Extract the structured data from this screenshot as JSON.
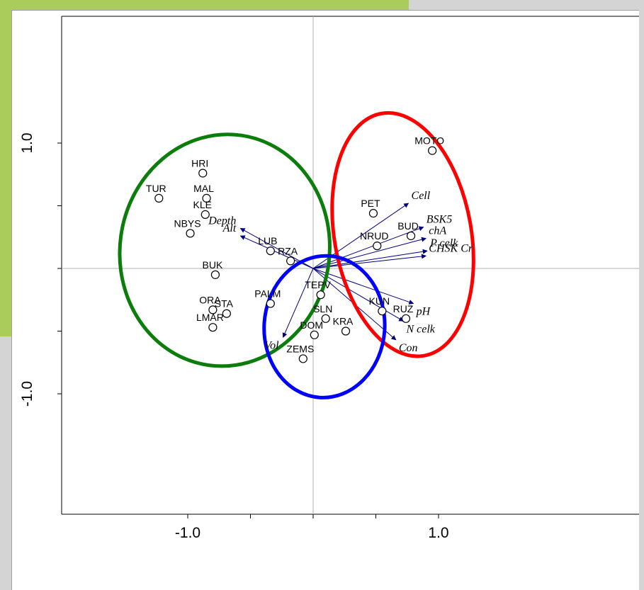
{
  "chart_data": {
    "type": "scatter",
    "title": "",
    "xlabel": "",
    "ylabel": "",
    "xlim": [
      -1.0,
      1.0
    ],
    "ylim": [
      -1.0,
      1.0
    ],
    "x_tick_labels": [
      {
        "value": -1.0,
        "label": "-1.0"
      },
      {
        "value": 1.0,
        "label": "1.0"
      }
    ],
    "y_tick_labels": [
      {
        "value": 1.0,
        "label": "1.0"
      },
      {
        "value": -1.0,
        "label": "-1.0"
      }
    ],
    "sites": [
      {
        "name": "MOTO",
        "x": 0.95,
        "y": 0.94
      },
      {
        "name": "HRI",
        "x": -0.88,
        "y": 0.76
      },
      {
        "name": "TUR",
        "x": -1.23,
        "y": 0.56
      },
      {
        "name": "MAL",
        "x": -0.85,
        "y": 0.56
      },
      {
        "name": "KLE",
        "x": -0.86,
        "y": 0.43
      },
      {
        "name": "NBYS",
        "x": -0.98,
        "y": 0.28
      },
      {
        "name": "PET",
        "x": 0.48,
        "y": 0.44
      },
      {
        "name": "BUD",
        "x": 0.78,
        "y": 0.26
      },
      {
        "name": "NRUD",
        "x": 0.51,
        "y": 0.18
      },
      {
        "name": "LUB",
        "x": -0.34,
        "y": 0.14
      },
      {
        "name": "RZA",
        "x": -0.18,
        "y": 0.06
      },
      {
        "name": "BUK",
        "x": -0.78,
        "y": -0.05
      },
      {
        "name": "TEPV",
        "x": 0.06,
        "y": -0.21
      },
      {
        "name": "PALM",
        "x": -0.34,
        "y": -0.28
      },
      {
        "name": "ORA",
        "x": -0.8,
        "y": -0.33
      },
      {
        "name": "STA",
        "x": -0.69,
        "y": -0.36
      },
      {
        "name": "SLN",
        "x": 0.1,
        "y": -0.4
      },
      {
        "name": "KUN",
        "x": 0.55,
        "y": -0.34
      },
      {
        "name": "RUZ",
        "x": 0.74,
        "y": -0.4
      },
      {
        "name": "LMAR",
        "x": -0.8,
        "y": -0.47
      },
      {
        "name": "KRA",
        "x": 0.26,
        "y": -0.5
      },
      {
        "name": "DOM",
        "x": 0.01,
        "y": -0.53
      },
      {
        "name": "ZEMS",
        "x": -0.08,
        "y": -0.72
      }
    ],
    "arrows": [
      {
        "name": "Cell",
        "x": 0.76,
        "y": 0.52
      },
      {
        "name": "BSK5",
        "x": 0.88,
        "y": 0.33
      },
      {
        "name": "chA",
        "x": 0.9,
        "y": 0.24
      },
      {
        "name": "P celk",
        "x": 0.91,
        "y": 0.14
      },
      {
        "name": "CHSK Cr",
        "x": 0.9,
        "y": 0.1
      },
      {
        "name": "pH",
        "x": 0.8,
        "y": -0.28
      },
      {
        "name": "N celk",
        "x": 0.72,
        "y": -0.42
      },
      {
        "name": "Con",
        "x": 0.66,
        "y": -0.57
      },
      {
        "name": "Depth",
        "x": -0.58,
        "y": 0.32
      },
      {
        "name": "Alt",
        "x": -0.58,
        "y": 0.26
      },
      {
        "name": "Vol",
        "x": -0.24,
        "y": -0.55
      }
    ],
    "groups": [
      {
        "color": "#0a7d0a",
        "members": [
          "HRI",
          "TUR",
          "MAL",
          "KLE",
          "NBYS",
          "LUB",
          "RZA",
          "BUK",
          "PALM",
          "ORA",
          "STA",
          "LMAR"
        ]
      },
      {
        "color": "#ff0000",
        "members": [
          "MOTO",
          "PET",
          "BUD",
          "NRUD",
          "KUN",
          "RUZ"
        ]
      },
      {
        "color": "#0000ff",
        "members": [
          "TEPV",
          "SLN",
          "KRA",
          "DOM",
          "ZEMS"
        ]
      }
    ],
    "arrow_color": "#000080",
    "grid": false,
    "origin_lines": true,
    "legend": "none"
  }
}
